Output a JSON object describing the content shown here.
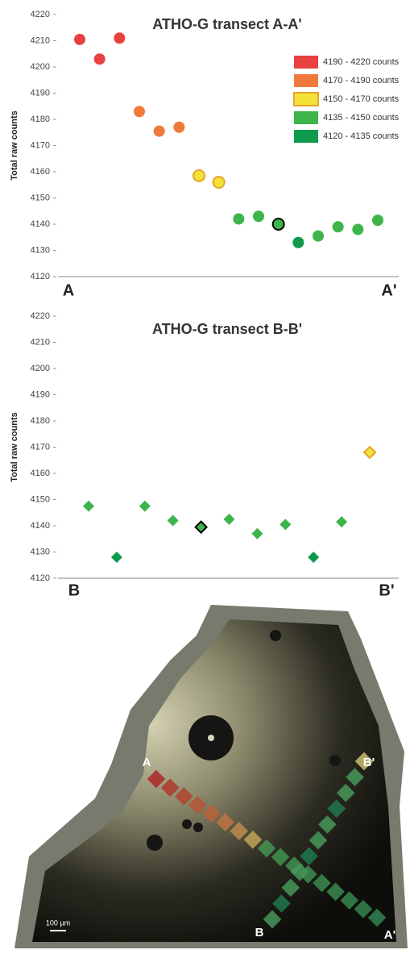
{
  "charts": [
    {
      "chart_data": {
        "type": "scatter",
        "marker": "circle",
        "title": "ATHO-G transect A-A'",
        "y_label": "Total raw counts",
        "x_end_labels": [
          "A",
          "A'"
        ],
        "categories": [
          null,
          null,
          null,
          null,
          null,
          null,
          null,
          null,
          null,
          null,
          null,
          null,
          null,
          null,
          null,
          null
        ],
        "ylim": [
          4120,
          4220
        ],
        "yticks": [
          4120,
          4130,
          4140,
          4150,
          4160,
          4170,
          4180,
          4190,
          4200,
          4210,
          4220
        ],
        "legend": "top-right",
        "series": [
          {
            "name": "4190 - 4220 counts",
            "color": "#e8413f",
            "values": [
              4210.5,
              4203,
              4211,
              null,
              null,
              null,
              null,
              null,
              null,
              null,
              null,
              null,
              null,
              null,
              null,
              null
            ]
          },
          {
            "name": "4170 - 4190 counts",
            "color": "#f07a3c",
            "values": [
              null,
              null,
              null,
              4183,
              4175.5,
              4177,
              null,
              null,
              null,
              null,
              null,
              null,
              null,
              null,
              null,
              null
            ]
          },
          {
            "name": "4150 - 4170 counts",
            "color": "#f3e338",
            "edgecolor": "#e8a32a",
            "values": [
              null,
              null,
              null,
              null,
              null,
              null,
              4158.5,
              4156,
              null,
              null,
              null,
              null,
              null,
              null,
              null,
              null
            ]
          },
          {
            "name": "4135 - 4150 counts",
            "color": "#3db54a",
            "values": [
              null,
              null,
              null,
              null,
              null,
              null,
              null,
              null,
              4142,
              4143,
              null,
              null,
              4135.5,
              4139,
              4138,
              4141.5
            ]
          },
          {
            "name": "4120 - 4135 counts",
            "color": "#0e9a4c",
            "values": [
              null,
              null,
              null,
              null,
              null,
              null,
              null,
              null,
              null,
              null,
              null,
              4133,
              null,
              null,
              null,
              null
            ]
          },
          {
            "color": "#3db54a",
            "edgecolor": "#000000",
            "values": [
              null,
              null,
              null,
              null,
              null,
              null,
              null,
              null,
              null,
              null,
              4140,
              null,
              null,
              null,
              null,
              null
            ]
          }
        ]
      }
    },
    {
      "chart_data": {
        "type": "scatter",
        "marker": "diamond",
        "title": "ATHO-G transect B-B'",
        "y_label": "Total raw counts",
        "x_end_labels": [
          "B",
          "B'"
        ],
        "categories": [
          null,
          null,
          null,
          null,
          null,
          null,
          null,
          null,
          null,
          null,
          null
        ],
        "ylim": [
          4120,
          4220
        ],
        "yticks": [
          4120,
          4130,
          4140,
          4150,
          4160,
          4170,
          4180,
          4190,
          4200,
          4210,
          4220
        ],
        "series": [
          {
            "color": "#3db54a",
            "values": [
              4147.5,
              null,
              4147.5,
              4142,
              null,
              4142.5,
              4137,
              4140.5,
              null,
              4141.5,
              null
            ]
          },
          {
            "color": "#0e9a4c",
            "values": [
              null,
              4128,
              null,
              null,
              null,
              null,
              null,
              null,
              4128,
              null,
              null
            ]
          },
          {
            "color": "#f3e338",
            "edgecolor": "#e8a32a",
            "values": [
              null,
              null,
              null,
              null,
              null,
              null,
              null,
              null,
              null,
              null,
              4168
            ]
          },
          {
            "color": "#3db54a",
            "edgecolor": "#000000",
            "values": [
              null,
              null,
              null,
              null,
              4139.5,
              null,
              null,
              null,
              null,
              null,
              null
            ]
          }
        ]
      }
    }
  ],
  "micrograph": {
    "labels": [
      "A",
      "A'",
      "B",
      "B'"
    ],
    "scale_bar": "100 µm"
  }
}
